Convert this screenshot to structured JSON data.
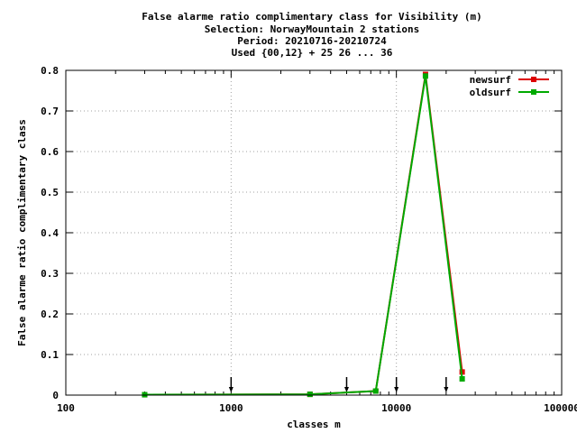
{
  "chart_data": {
    "type": "line",
    "title_lines": [
      "False alarme ratio complimentary class  for Visibility (m)",
      "Selection: NorwayMountain      2 stations",
      "Period: 20210716-20210724",
      "Used {00,12} + 25 26 ... 36"
    ],
    "xlabel": "classes m",
    "ylabel": "False alarme ratio complimentary class",
    "x_scale": "log",
    "xlim": [
      100,
      100000
    ],
    "ylim": [
      0,
      0.8
    ],
    "x_ticks": [
      100,
      1000,
      10000,
      100000
    ],
    "x_tick_labels": [
      "100",
      "1000",
      "10000",
      "100000"
    ],
    "y_ticks": [
      0,
      0.1,
      0.2,
      0.3,
      0.4,
      0.5,
      0.6,
      0.7,
      0.8
    ],
    "y_tick_labels": [
      "0",
      "0.1",
      "0.2",
      "0.3",
      "0.4",
      "0.5",
      "0.6",
      "0.7",
      "0.8"
    ],
    "grid": true,
    "legend_position": "top-right",
    "class_markers_x": [
      1000,
      5000,
      10000,
      20000
    ],
    "series": [
      {
        "name": "newsurf",
        "color": "#dd0000",
        "x": [
          300,
          3000,
          7500,
          15000,
          25000
        ],
        "y": [
          0.001,
          0.002,
          0.01,
          0.79,
          0.057
        ]
      },
      {
        "name": "oldsurf",
        "color": "#00aa00",
        "x": [
          300,
          3000,
          7500,
          15000,
          25000
        ],
        "y": [
          0.001,
          0.002,
          0.01,
          0.786,
          0.04
        ]
      }
    ]
  }
}
